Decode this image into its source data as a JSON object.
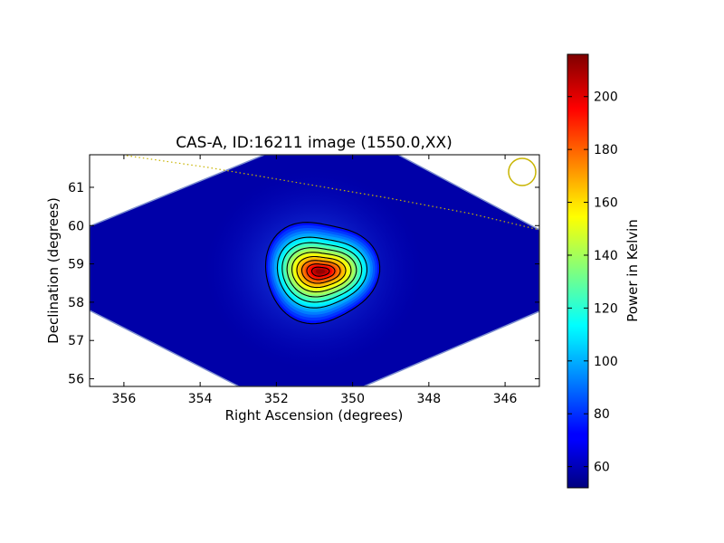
{
  "chart_data": {
    "type": "heatmap",
    "title": "CAS-A, ID:16211 image (1550.0,XX)",
    "xlabel": "Right Ascension (degrees)",
    "ylabel": "Declination (degrees)",
    "xlim": [
      356.9,
      345.1
    ],
    "ylim": [
      55.8,
      61.85
    ],
    "x_ticks": [
      356,
      354,
      352,
      350,
      348,
      346
    ],
    "y_ticks": [
      56,
      57,
      58,
      59,
      60,
      61
    ],
    "source": {
      "ra": 350.85,
      "dec": 58.8,
      "peak_kelvin": 215
    },
    "background_kelvin": 55,
    "colormap": "jet",
    "colorbar": {
      "label": "Power in Kelvin",
      "range": [
        52,
        216
      ],
      "ticks": [
        60,
        80,
        100,
        120,
        140,
        160,
        180,
        200
      ]
    },
    "contour_count": 9,
    "beam_marker_color": "#c8b400",
    "dotted_line_color": "#c8b400"
  }
}
